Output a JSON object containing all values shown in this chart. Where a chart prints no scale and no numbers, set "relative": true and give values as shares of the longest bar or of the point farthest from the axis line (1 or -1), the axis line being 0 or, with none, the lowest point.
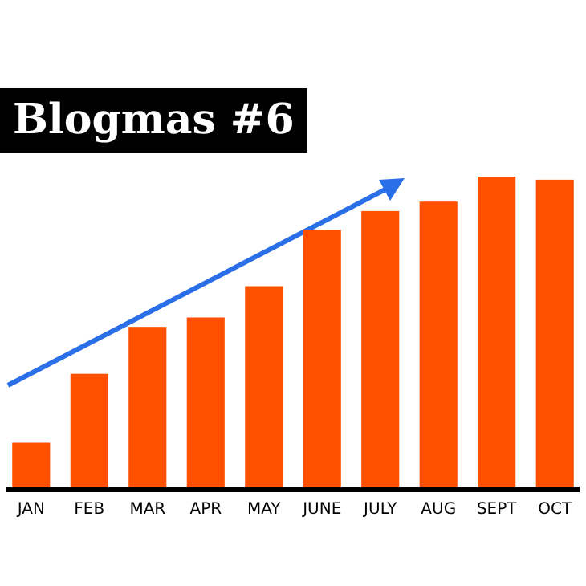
{
  "chart_data": {
    "type": "bar",
    "title": "Blogmas #6",
    "relative": true,
    "color": "#ff5000",
    "categories": [
      "JAN",
      "FEB",
      "MAR",
      "APR",
      "MAY",
      "JUNE",
      "JULY",
      "AUG",
      "SEPT",
      "OCT"
    ],
    "values": [
      0.15,
      0.37,
      0.52,
      0.55,
      0.65,
      0.83,
      0.89,
      0.92,
      1,
      0.99
    ]
  }
}
